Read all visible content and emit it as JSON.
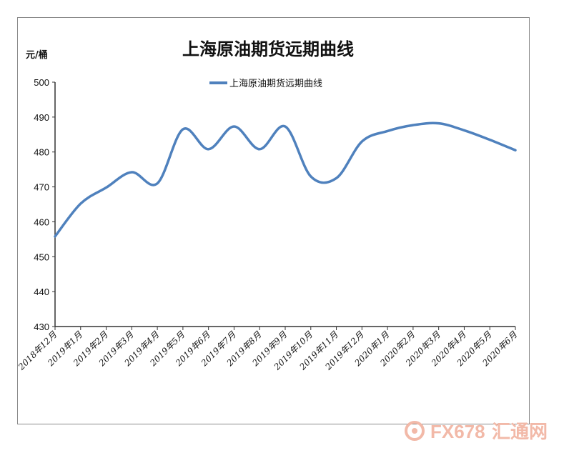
{
  "chart_data": {
    "type": "line",
    "title": "上海原油期货远期曲线",
    "ylabel": "元/桶",
    "xlabel": "",
    "ylim": [
      430,
      500
    ],
    "yticks": [
      430,
      440,
      450,
      460,
      470,
      480,
      490,
      500
    ],
    "grid": false,
    "legend_position": "top-center",
    "categories": [
      "2018年12月",
      "2019年1月",
      "2019年2月",
      "2019年3月",
      "2019年4月",
      "2019年5月",
      "2019年6月",
      "2019年7月",
      "2019年8月",
      "2019年9月",
      "2019年10月",
      "2019年11月",
      "2019年12月",
      "2020年1月",
      "2020年2月",
      "2020年3月",
      "2020年4月",
      "2020年5月",
      "2020年6月"
    ],
    "series": [
      {
        "name": "上海原油期货远期曲线",
        "color": "#4f81bd",
        "values": [
          455.8,
          465.2,
          469.8,
          474.2,
          471.0,
          486.5,
          480.8,
          487.3,
          480.8,
          487.3,
          473.0,
          472.5,
          483.0,
          486.0,
          487.7,
          488.2,
          486.2,
          483.5,
          480.5
        ]
      }
    ]
  },
  "watermark": {
    "brand": "FX678",
    "cn": "汇通网",
    "icon": "swirl-logo-icon",
    "color": "#f2b9a8"
  }
}
